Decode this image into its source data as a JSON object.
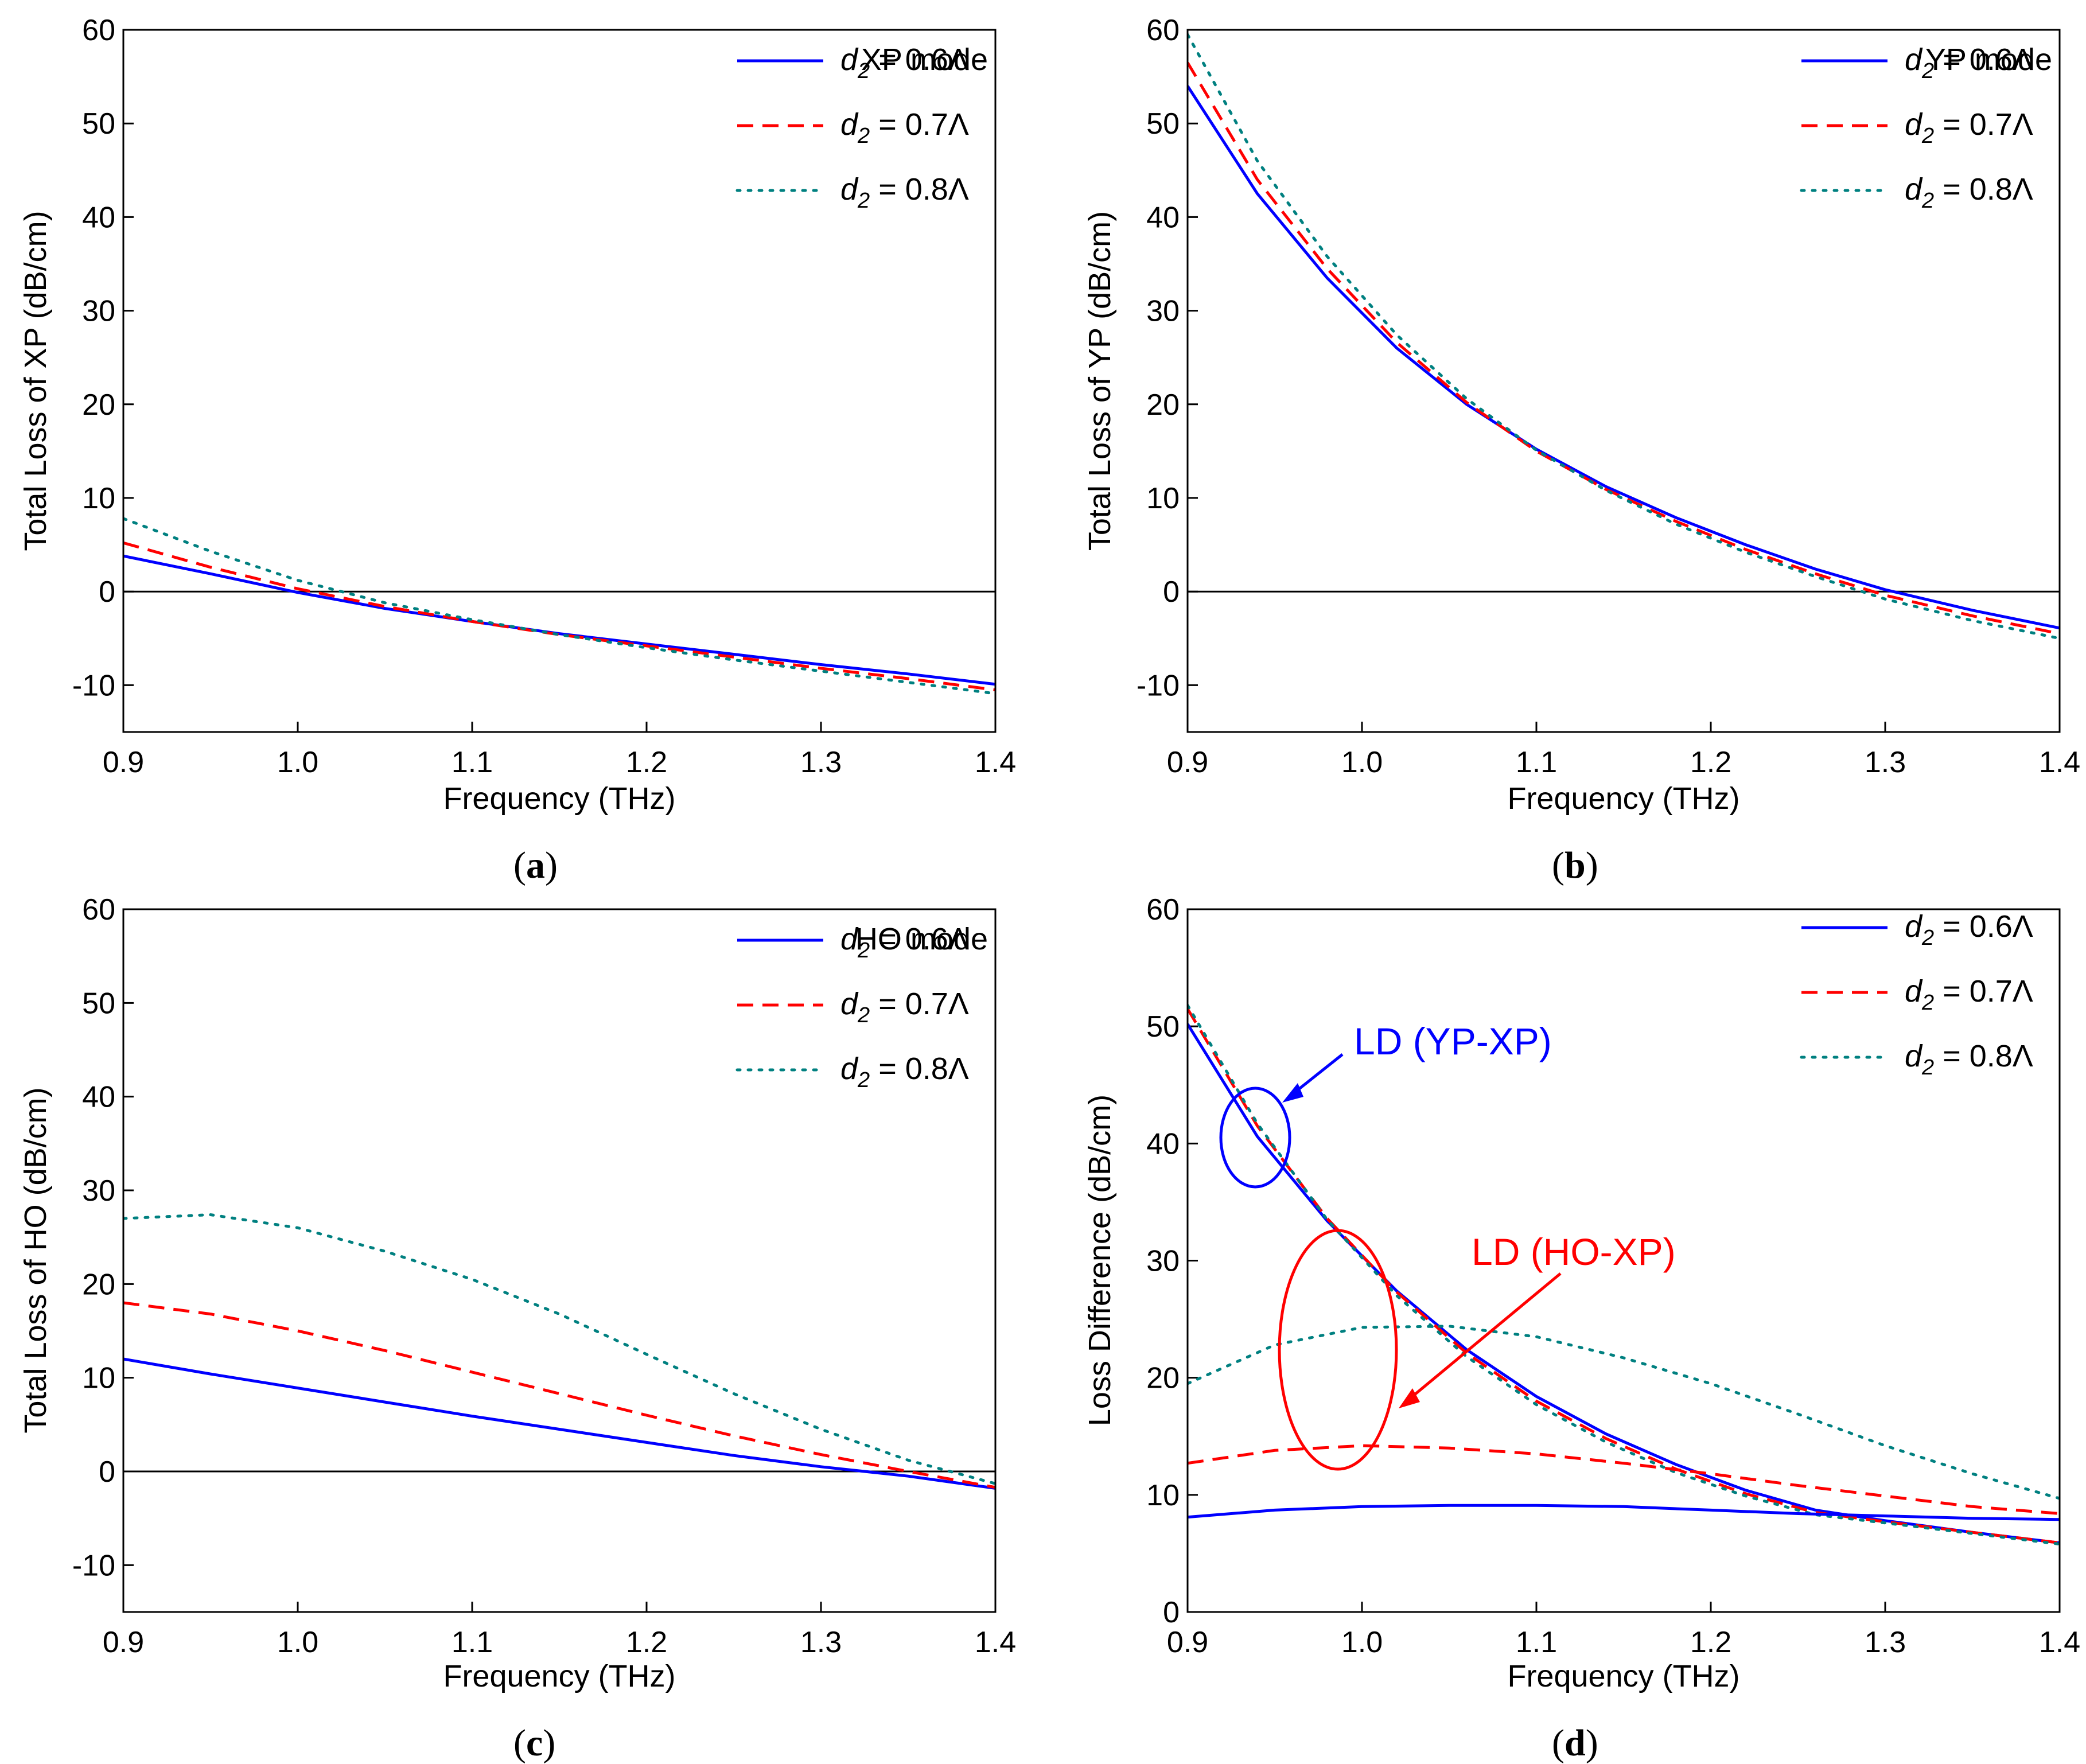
{
  "colors": {
    "d2_0_6": "#0000ff",
    "d2_0_7": "#ff0000",
    "d2_0_8": "#008080",
    "axis": "#000000",
    "zero_line": "#000000"
  },
  "chart_data": [
    {
      "id": "a",
      "type": "line",
      "caption": "a",
      "title": "XP mode",
      "xlabel": "Frequency (THz)",
      "ylabel": "Total Loss of XP (dB/cm)",
      "xlim": [
        0.9,
        1.4
      ],
      "ylim": [
        -15,
        60
      ],
      "xticks": [
        "0.9",
        "1.0",
        "1.1",
        "1.2",
        "1.3",
        "1.4"
      ],
      "yticks": [
        "-10",
        "0",
        "10",
        "20",
        "30",
        "40",
        "50",
        "60"
      ],
      "zero_line": true,
      "legend": [
        "XP mode",
        "d2 = 0.6Λ",
        "d2 = 0.7Λ",
        "d2 = 0.8Λ"
      ],
      "legend_location": "top-right",
      "series": [
        {
          "name": "d2 = 0.6Λ",
          "style": "solid",
          "x": [
            0.9,
            0.95,
            1.0,
            1.05,
            1.1,
            1.15,
            1.2,
            1.25,
            1.3,
            1.35,
            1.4
          ],
          "y": [
            3.8,
            1.9,
            -0.1,
            -1.8,
            -3.2,
            -4.5,
            -5.6,
            -6.7,
            -7.8,
            -8.8,
            -9.9
          ]
        },
        {
          "name": "d2 = 0.7Λ",
          "style": "dashed",
          "x": [
            0.9,
            0.95,
            1.0,
            1.05,
            1.1,
            1.15,
            1.2,
            1.25,
            1.3,
            1.35,
            1.4
          ],
          "y": [
            5.2,
            2.6,
            0.3,
            -1.6,
            -3.2,
            -4.6,
            -5.8,
            -7.0,
            -8.2,
            -9.3,
            -10.5
          ]
        },
        {
          "name": "d2 = 0.8Λ",
          "style": "dotted",
          "x": [
            0.9,
            0.95,
            1.0,
            1.05,
            1.1,
            1.15,
            1.2,
            1.25,
            1.3,
            1.35,
            1.4
          ],
          "y": [
            7.8,
            4.3,
            1.2,
            -1.2,
            -3.0,
            -4.6,
            -6.0,
            -7.3,
            -8.5,
            -9.7,
            -10.9
          ]
        }
      ]
    },
    {
      "id": "b",
      "type": "line",
      "caption": "b",
      "title": "YP mode",
      "xlabel": "Frequency (THz)",
      "ylabel": "Total Loss of YP (dB/cm)",
      "xlim": [
        0.9,
        1.4
      ],
      "ylim": [
        -15,
        60
      ],
      "xticks": [
        "0.9",
        "1.0",
        "1.1",
        "1.2",
        "1.3",
        "1.4"
      ],
      "yticks": [
        "-10",
        "0",
        "10",
        "20",
        "30",
        "40",
        "50",
        "60"
      ],
      "zero_line": true,
      "legend": [
        "YP mode",
        "d2 = 0.6Λ",
        "d2 = 0.7Λ",
        "d2 = 0.8Λ"
      ],
      "legend_location": "top-right",
      "series": [
        {
          "name": "d2 = 0.6Λ",
          "style": "solid",
          "x": [
            0.9,
            0.94,
            0.98,
            1.02,
            1.06,
            1.1,
            1.14,
            1.18,
            1.22,
            1.26,
            1.3,
            1.35,
            1.4
          ],
          "y": [
            54.0,
            42.5,
            33.5,
            26.0,
            20.0,
            15.2,
            11.2,
            7.9,
            5.0,
            2.4,
            0.2,
            -2.0,
            -3.9
          ]
        },
        {
          "name": "d2 = 0.7Λ",
          "style": "dashed",
          "x": [
            0.9,
            0.94,
            0.98,
            1.02,
            1.06,
            1.1,
            1.14,
            1.18,
            1.22,
            1.26,
            1.3,
            1.35,
            1.4
          ],
          "y": [
            56.5,
            44.0,
            34.5,
            26.6,
            20.2,
            15.0,
            10.9,
            7.5,
            4.5,
            1.9,
            -0.4,
            -2.6,
            -4.5
          ]
        },
        {
          "name": "d2 = 0.8Λ",
          "style": "dotted",
          "x": [
            0.9,
            0.94,
            0.98,
            1.02,
            1.06,
            1.1,
            1.14,
            1.18,
            1.22,
            1.26,
            1.3,
            1.35,
            1.4
          ],
          "y": [
            59.5,
            46.0,
            35.8,
            27.4,
            20.6,
            15.1,
            10.8,
            7.2,
            4.2,
            1.6,
            -0.8,
            -3.1,
            -5.0
          ]
        }
      ]
    },
    {
      "id": "c",
      "type": "line",
      "caption": "c",
      "title": "HO mode",
      "xlabel": "Frequency (THz)",
      "ylabel": "Total Loss of HO (dB/cm)",
      "xlim": [
        0.9,
        1.4
      ],
      "ylim": [
        -15,
        60
      ],
      "xticks": [
        "0.9",
        "1.0",
        "1.1",
        "1.2",
        "1.3",
        "1.4"
      ],
      "yticks": [
        "-10",
        "0",
        "10",
        "20",
        "30",
        "40",
        "50",
        "60"
      ],
      "zero_line": true,
      "legend": [
        "HO mode",
        "d2 = 0.6Λ",
        "d2 = 0.7Λ",
        "d2 = 0.8Λ"
      ],
      "legend_location": "top-right",
      "series": [
        {
          "name": "d2 = 0.6Λ",
          "style": "solid",
          "x": [
            0.9,
            0.95,
            1.0,
            1.05,
            1.1,
            1.15,
            1.2,
            1.25,
            1.3,
            1.35,
            1.4
          ],
          "y": [
            12.0,
            10.4,
            8.9,
            7.4,
            5.9,
            4.5,
            3.1,
            1.7,
            0.5,
            -0.5,
            -1.8
          ]
        },
        {
          "name": "d2 = 0.7Λ",
          "style": "dashed",
          "x": [
            0.9,
            0.95,
            1.0,
            1.05,
            1.1,
            1.15,
            1.2,
            1.25,
            1.3,
            1.35,
            1.4
          ],
          "y": [
            18.0,
            16.8,
            15.0,
            12.9,
            10.6,
            8.3,
            6.0,
            3.8,
            1.8,
            0.0,
            -1.7
          ]
        },
        {
          "name": "d2 = 0.8Λ",
          "style": "dotted",
          "x": [
            0.9,
            0.95,
            1.0,
            1.05,
            1.1,
            1.15,
            1.2,
            1.25,
            1.3,
            1.35,
            1.4
          ],
          "y": [
            27.0,
            27.4,
            26.0,
            23.5,
            20.5,
            16.8,
            12.5,
            8.3,
            4.5,
            1.2,
            -1.3
          ]
        }
      ]
    },
    {
      "id": "d",
      "type": "line",
      "caption": "d",
      "title": "",
      "xlabel": "Frequency (THz)",
      "ylabel": "Loss Difference (dB/cm)",
      "xlim": [
        0.9,
        1.4
      ],
      "ylim": [
        0,
        60
      ],
      "xticks": [
        "0.9",
        "1.0",
        "1.1",
        "1.2",
        "1.3",
        "1.4"
      ],
      "yticks": [
        "0",
        "10",
        "20",
        "30",
        "40",
        "50",
        "60"
      ],
      "zero_line": false,
      "legend": [
        "d2 = 0.6Λ",
        "d2 = 0.7Λ",
        "d2 = 0.8Λ"
      ],
      "legend_location": "top-right",
      "annotations": [
        {
          "text": "LD (YP-XP)",
          "color": "#0000ff",
          "target": "ellipse around d2 curves near 0.94 THz, 40 dB/cm"
        },
        {
          "text": "LD (HO-XP)",
          "color": "#ff0000",
          "target": "ellipse around d2 curves near 0.99 THz, 16 dB/cm"
        }
      ],
      "series": [
        {
          "name": "LD (YP-XP) d2 = 0.6Λ",
          "style": "solid",
          "x": [
            0.9,
            0.94,
            0.98,
            1.02,
            1.06,
            1.1,
            1.14,
            1.18,
            1.22,
            1.26,
            1.3,
            1.35,
            1.4
          ],
          "y": [
            50.2,
            40.6,
            33.4,
            27.4,
            22.4,
            18.4,
            15.2,
            12.6,
            10.4,
            8.7,
            7.8,
            6.8,
            5.9
          ]
        },
        {
          "name": "LD (YP-XP) d2 = 0.7Λ",
          "style": "dashed",
          "x": [
            0.9,
            0.94,
            0.98,
            1.02,
            1.06,
            1.1,
            1.14,
            1.18,
            1.22,
            1.26,
            1.3,
            1.35,
            1.4
          ],
          "y": [
            51.5,
            41.5,
            33.6,
            27.3,
            22.1,
            18.0,
            14.8,
            12.2,
            10.1,
            8.5,
            7.7,
            6.8,
            5.9
          ]
        },
        {
          "name": "LD (YP-XP) d2 = 0.8Λ",
          "style": "dotted",
          "x": [
            0.9,
            0.94,
            0.98,
            1.02,
            1.06,
            1.1,
            1.14,
            1.18,
            1.22,
            1.26,
            1.3,
            1.35,
            1.4
          ],
          "y": [
            51.8,
            41.7,
            33.5,
            27.0,
            21.8,
            17.7,
            14.5,
            11.9,
            9.9,
            8.3,
            7.6,
            6.7,
            5.8
          ]
        },
        {
          "name": "LD (HO-XP) d2 = 0.6Λ",
          "style": "solid",
          "x": [
            0.9,
            0.95,
            1.0,
            1.05,
            1.1,
            1.15,
            1.2,
            1.25,
            1.3,
            1.35,
            1.4
          ],
          "y": [
            8.1,
            8.7,
            9.0,
            9.1,
            9.1,
            9.0,
            8.7,
            8.4,
            8.2,
            8.0,
            7.9
          ]
        },
        {
          "name": "LD (HO-XP) d2 = 0.7Λ",
          "style": "dashed",
          "x": [
            0.9,
            0.95,
            1.0,
            1.05,
            1.1,
            1.15,
            1.2,
            1.25,
            1.3,
            1.35,
            1.4
          ],
          "y": [
            12.7,
            13.8,
            14.2,
            14.0,
            13.5,
            12.7,
            11.8,
            10.8,
            9.9,
            9.0,
            8.4
          ]
        },
        {
          "name": "LD (HO-XP) d2 = 0.8Λ",
          "style": "dotted",
          "x": [
            0.9,
            0.95,
            1.0,
            1.05,
            1.1,
            1.15,
            1.2,
            1.25,
            1.3,
            1.35,
            1.4
          ],
          "y": [
            19.5,
            22.8,
            24.3,
            24.4,
            23.5,
            21.7,
            19.5,
            16.9,
            14.2,
            11.8,
            9.7
          ]
        }
      ]
    }
  ]
}
